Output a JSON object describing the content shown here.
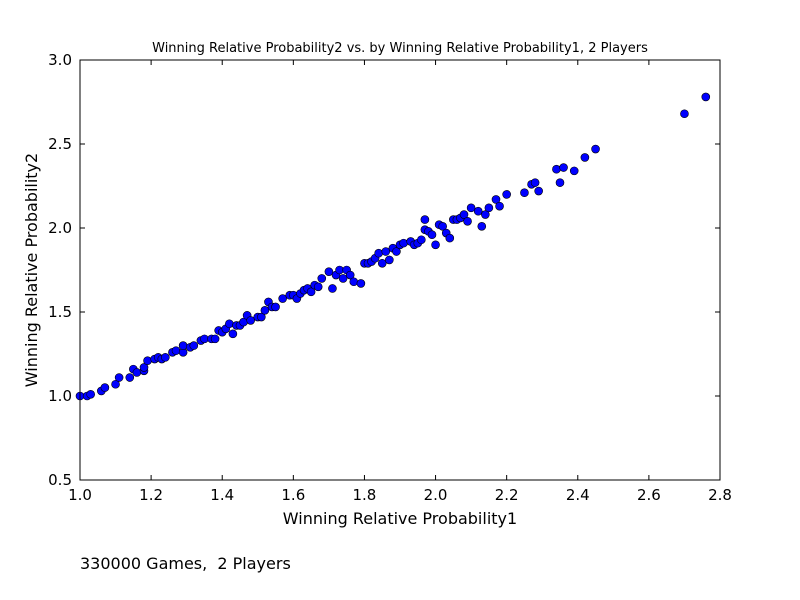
{
  "chart_data": {
    "type": "scatter",
    "title": "Winning Relative Probability2 vs. by Winning Relative Probability1, 2 Players",
    "xlabel": "Winning Relative Probability1",
    "ylabel": "Winning Relative Probability2",
    "xlim": [
      1.0,
      2.8
    ],
    "ylim": [
      0.5,
      3.0
    ],
    "xticks": [
      "1.0",
      "1.2",
      "1.4",
      "1.6",
      "1.8",
      "2.0",
      "2.2",
      "2.4",
      "2.6",
      "2.8"
    ],
    "yticks": [
      "0.5",
      "1.0",
      "1.5",
      "2.0",
      "2.5",
      "3.0"
    ],
    "grid": false,
    "marker_color": "#0000ff",
    "x": [
      1.0,
      1.02,
      1.03,
      1.06,
      1.07,
      1.1,
      1.11,
      1.14,
      1.15,
      1.16,
      1.18,
      1.18,
      1.19,
      1.21,
      1.22,
      1.23,
      1.24,
      1.26,
      1.27,
      1.29,
      1.29,
      1.31,
      1.32,
      1.34,
      1.35,
      1.37,
      1.38,
      1.39,
      1.4,
      1.41,
      1.42,
      1.43,
      1.44,
      1.45,
      1.46,
      1.47,
      1.48,
      1.5,
      1.51,
      1.52,
      1.53,
      1.54,
      1.55,
      1.57,
      1.59,
      1.6,
      1.61,
      1.62,
      1.63,
      1.64,
      1.65,
      1.66,
      1.67,
      1.68,
      1.7,
      1.71,
      1.72,
      1.73,
      1.74,
      1.75,
      1.76,
      1.77,
      1.79,
      1.8,
      1.81,
      1.82,
      1.83,
      1.84,
      1.85,
      1.86,
      1.87,
      1.88,
      1.89,
      1.9,
      1.91,
      1.93,
      1.94,
      1.95,
      1.96,
      1.97,
      1.97,
      1.98,
      1.99,
      2.0,
      2.01,
      2.02,
      2.03,
      2.04,
      2.05,
      2.06,
      2.07,
      2.08,
      2.09,
      2.1,
      2.12,
      2.13,
      2.14,
      2.15,
      2.17,
      2.18,
      2.2,
      2.25,
      2.27,
      2.28,
      2.29,
      2.34,
      2.35,
      2.36,
      2.39,
      2.42,
      2.45,
      2.7,
      2.76
    ],
    "y": [
      1.0,
      1.0,
      1.01,
      1.03,
      1.05,
      1.07,
      1.11,
      1.11,
      1.16,
      1.14,
      1.15,
      1.17,
      1.21,
      1.22,
      1.23,
      1.22,
      1.23,
      1.26,
      1.27,
      1.26,
      1.3,
      1.29,
      1.3,
      1.33,
      1.34,
      1.34,
      1.34,
      1.39,
      1.38,
      1.4,
      1.43,
      1.37,
      1.42,
      1.42,
      1.44,
      1.48,
      1.45,
      1.47,
      1.47,
      1.51,
      1.56,
      1.53,
      1.53,
      1.58,
      1.6,
      1.6,
      1.58,
      1.61,
      1.63,
      1.64,
      1.62,
      1.66,
      1.65,
      1.7,
      1.74,
      1.64,
      1.72,
      1.75,
      1.7,
      1.75,
      1.72,
      1.68,
      1.67,
      1.79,
      1.79,
      1.8,
      1.82,
      1.85,
      1.79,
      1.86,
      1.81,
      1.88,
      1.86,
      1.9,
      1.91,
      1.92,
      1.9,
      1.91,
      1.93,
      1.99,
      2.05,
      1.98,
      1.96,
      1.9,
      2.02,
      2.01,
      1.97,
      1.94,
      2.05,
      2.05,
      2.06,
      2.08,
      2.04,
      2.12,
      2.1,
      2.01,
      2.08,
      2.12,
      2.17,
      2.13,
      2.2,
      2.21,
      2.26,
      2.27,
      2.22,
      2.35,
      2.27,
      2.36,
      2.34,
      2.42,
      2.47,
      2.68,
      2.78
    ]
  },
  "caption": "330000 Games,  2 Players"
}
